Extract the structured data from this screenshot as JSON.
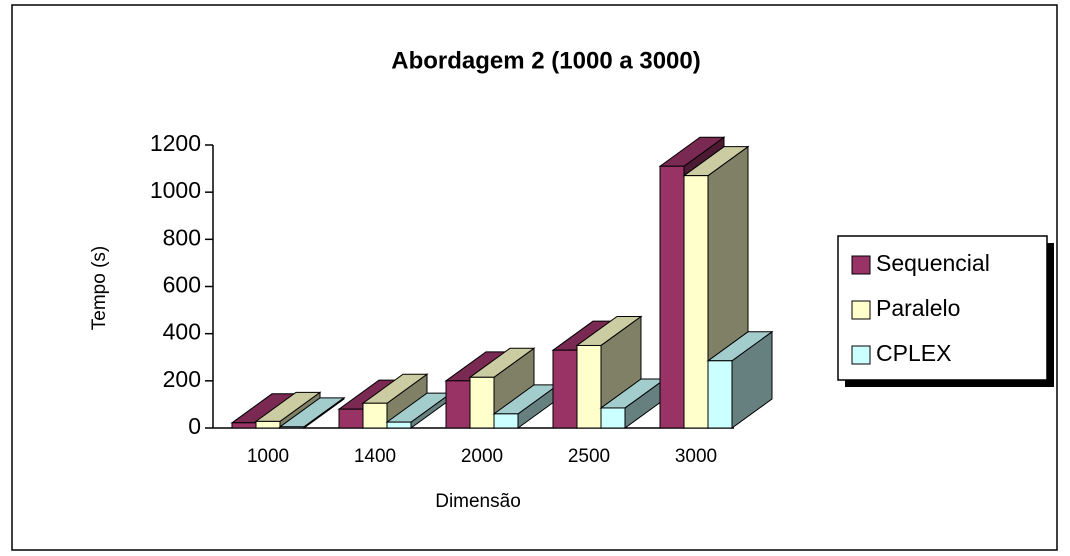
{
  "chart_data": {
    "type": "bar3d",
    "title": "Abordagem 2 (1000 a 3000)",
    "xlabel": "Dimensão",
    "ylabel": "Tempo (s)",
    "categories": [
      "1000",
      "1400",
      "2000",
      "2500",
      "3000"
    ],
    "series": [
      {
        "name": "Sequencial",
        "color": "#993366",
        "values": [
          22,
          80,
          200,
          330,
          1110
        ]
      },
      {
        "name": "Paralelo",
        "color": "#ffffcc",
        "values": [
          28,
          105,
          215,
          350,
          1070
        ]
      },
      {
        "name": "CPLEX",
        "color": "#ccffff",
        "values": [
          5,
          25,
          60,
          85,
          285
        ]
      }
    ],
    "ylim": [
      0,
      1200
    ],
    "yticks": [
      0,
      200,
      400,
      600,
      800,
      1000,
      1200
    ],
    "legend": "right"
  }
}
